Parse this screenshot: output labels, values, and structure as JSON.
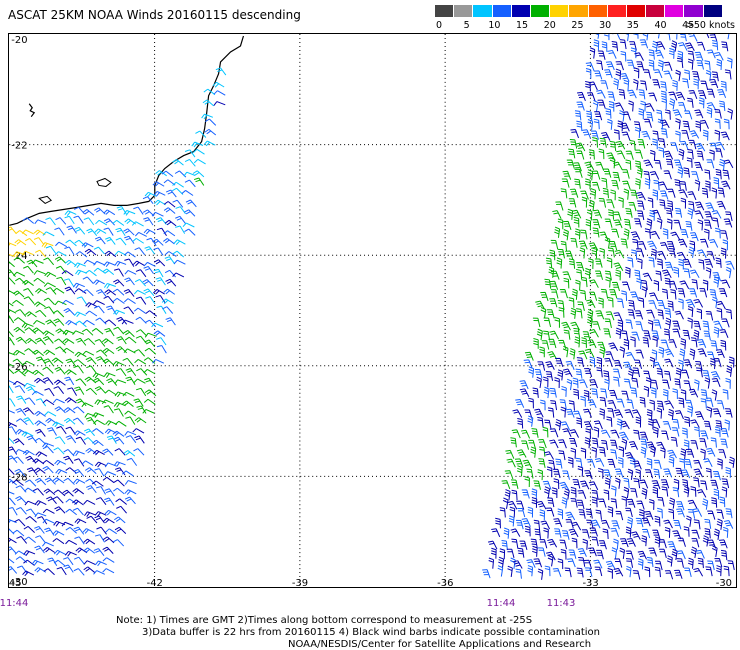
{
  "title": "ASCAT 25KM NOAA Winds 20160115 descending",
  "legend": {
    "colors": [
      "#444444",
      "#999999",
      "#00c4ff",
      "#1560ff",
      "#0000b0",
      "#00b000",
      "#ffd200",
      "#ffa500",
      "#ff6000",
      "#ff2020",
      "#e00000",
      "#c8003c",
      "#e000e0",
      "#9000d0",
      "#000080"
    ],
    "labels": [
      "0",
      "5",
      "10",
      "15",
      "20",
      "25",
      "30",
      "35",
      "40",
      "45",
      ">50 knots"
    ]
  },
  "axes": {
    "lat_labels": [
      "-20",
      "-22",
      "-24",
      "-26",
      "-28",
      "-30"
    ],
    "lon_labels": [
      "-45",
      "-42",
      "-39",
      "-36",
      "-33",
      "-30"
    ]
  },
  "time_labels": [
    "11:44",
    "11:44",
    "11:43"
  ],
  "notes": [
    "Note: 1) Times are GMT 2)Times along bottom correspond to measurement at -25S",
    "3)Data buffer is 22 hrs from 20160115 4) Black wind barbs indicate possible contamination",
    "NOAA/NESDIS/Center for Satellite Applications and Research"
  ],
  "colors": {
    "speed_10": "#00c4ff",
    "speed_15": "#1560ff",
    "speed_20": "#0000b0",
    "speed_25": "#00b000",
    "speed_30": "#ffd200",
    "land": "#000000"
  }
}
